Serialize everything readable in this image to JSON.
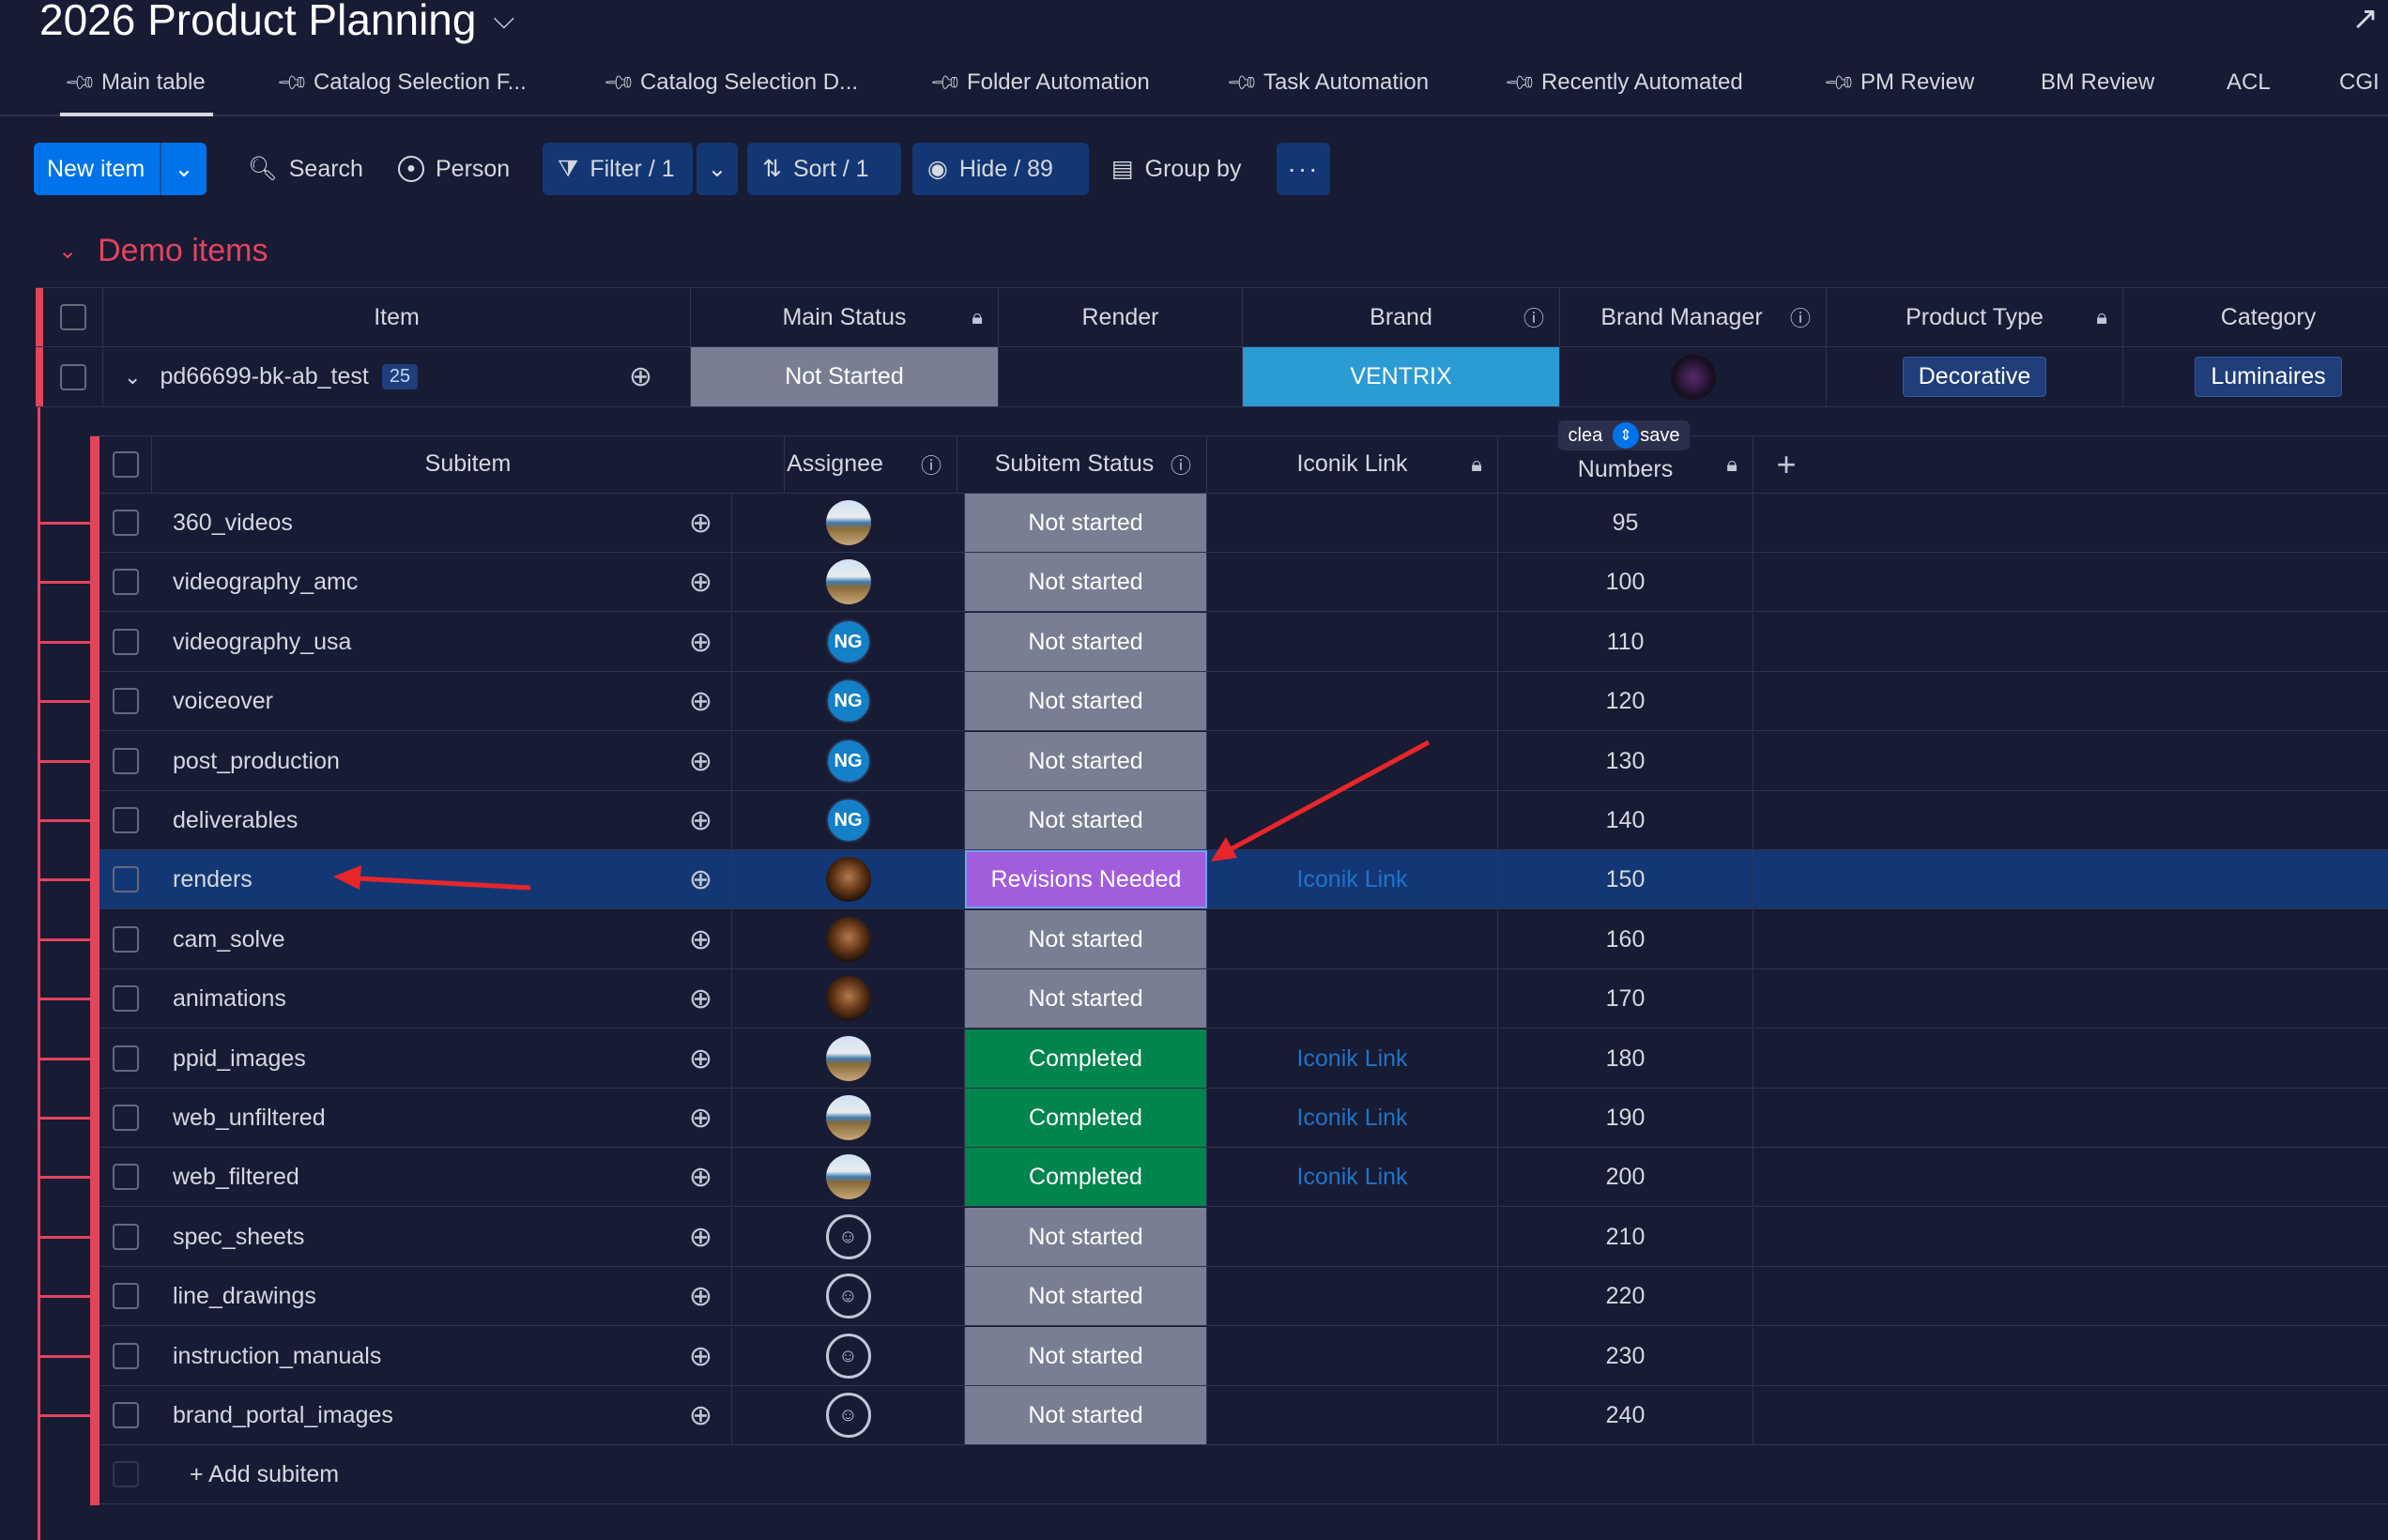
{
  "board": {
    "title": "2026 Product Planning"
  },
  "tabs": [
    {
      "label": "Main table",
      "pinned": true
    },
    {
      "label": "Catalog Selection F...",
      "pinned": true
    },
    {
      "label": "Catalog Selection D...",
      "pinned": true
    },
    {
      "label": "Folder Automation",
      "pinned": true
    },
    {
      "label": "Task Automation",
      "pinned": true
    },
    {
      "label": "Recently Automated",
      "pinned": true
    },
    {
      "label": "PM Review",
      "pinned": true
    },
    {
      "label": "BM Review",
      "pinned": false
    },
    {
      "label": "ACL",
      "pinned": false
    },
    {
      "label": "CGI",
      "pinned": false
    }
  ],
  "toolbar": {
    "new_item": "New item",
    "search": "Search",
    "person": "Person",
    "filter": "Filter / 1",
    "sort": "Sort / 1",
    "hide": "Hide / 89",
    "group_by": "Group by",
    "more": "···"
  },
  "group": {
    "title": "Demo items",
    "color": "#e2445c"
  },
  "main_columns": {
    "item": "Item",
    "main_status": "Main Status",
    "render": "Render",
    "brand": "Brand",
    "brand_manager": "Brand Manager",
    "product_type": "Product Type",
    "category": "Category"
  },
  "main_item": {
    "name": "pd66699-bk-ab_test",
    "subitem_count": "25",
    "main_status": "Not Started",
    "render": "",
    "brand": "VENTRIX",
    "product_type": "Decorative",
    "category": "Luminaires"
  },
  "sub_columns": {
    "subitem": "Subitem",
    "assignee": "Assignee",
    "subitem_status": "Subitem Status",
    "iconik_link": "Iconik Link",
    "numbers": "Numbers"
  },
  "tooltip": {
    "left": "clea",
    "right": "save"
  },
  "subitems": [
    {
      "name": "360_videos",
      "assignee": "photo",
      "status": "Not started",
      "link": "",
      "number": "95"
    },
    {
      "name": "videography_amc",
      "assignee": "photo",
      "status": "Not started",
      "link": "",
      "number": "100"
    },
    {
      "name": "videography_usa",
      "assignee": "NG",
      "status": "Not started",
      "link": "",
      "number": "110"
    },
    {
      "name": "voiceover",
      "assignee": "NG",
      "status": "Not started",
      "link": "",
      "number": "120"
    },
    {
      "name": "post_production",
      "assignee": "NG",
      "status": "Not started",
      "link": "",
      "number": "130"
    },
    {
      "name": "deliverables",
      "assignee": "NG",
      "status": "Not started",
      "link": "",
      "number": "140"
    },
    {
      "name": "renders",
      "assignee": "dark",
      "status": "Revisions Needed",
      "link": "Iconik Link",
      "number": "150",
      "selected": true
    },
    {
      "name": "cam_solve",
      "assignee": "dark",
      "status": "Not started",
      "link": "",
      "number": "160"
    },
    {
      "name": "animations",
      "assignee": "dark",
      "status": "Not started",
      "link": "",
      "number": "170"
    },
    {
      "name": "ppid_images",
      "assignee": "photo",
      "status": "Completed",
      "link": "Iconik Link",
      "number": "180"
    },
    {
      "name": "web_unfiltered",
      "assignee": "photo",
      "status": "Completed",
      "link": "Iconik Link",
      "number": "190"
    },
    {
      "name": "web_filtered",
      "assignee": "photo",
      "status": "Completed",
      "link": "Iconik Link",
      "number": "200"
    },
    {
      "name": "spec_sheets",
      "assignee": "empty",
      "status": "Not started",
      "link": "",
      "number": "210"
    },
    {
      "name": "line_drawings",
      "assignee": "empty",
      "status": "Not started",
      "link": "",
      "number": "220"
    },
    {
      "name": "instruction_manuals",
      "assignee": "empty",
      "status": "Not started",
      "link": "",
      "number": "230"
    },
    {
      "name": "brand_portal_images",
      "assignee": "empty",
      "status": "Not started",
      "link": "",
      "number": "240"
    }
  ],
  "add_subitem": "+ Add subitem",
  "colors": {
    "background": "#181b34",
    "primary": "#0073ea",
    "group": "#e2445c",
    "not_started": "#797e93",
    "completed": "#00854d",
    "revisions_needed": "#a25ddc",
    "brand": "#2b9bd3",
    "annotation_arrow": "#e8262a"
  }
}
